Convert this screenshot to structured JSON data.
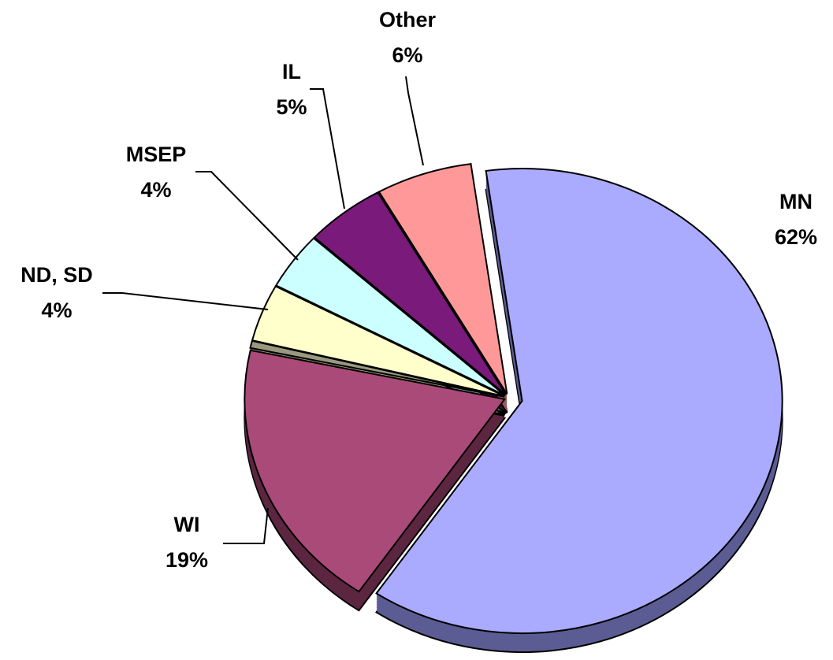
{
  "chart_data": {
    "type": "pie",
    "categories": [
      "MN",
      "WI",
      null,
      "ND, SD",
      "MSEP",
      "IL",
      "Other"
    ],
    "values": [
      62,
      19,
      0.5,
      4,
      4,
      5,
      6
    ],
    "value_labels": [
      "62%",
      "19%",
      null,
      "4%",
      "4%",
      "5%",
      "6%"
    ],
    "colors": [
      "#aaaaff",
      "#aa4a78",
      "#999980",
      "#ffffcc",
      "#ccffff",
      "#7a1a7a",
      "#ff9999"
    ],
    "side_colors": [
      "#5c5c94",
      "#5c2640",
      "#55554a",
      "#99997a",
      "#7a9999",
      "#40103f",
      "#995c5c"
    ]
  }
}
